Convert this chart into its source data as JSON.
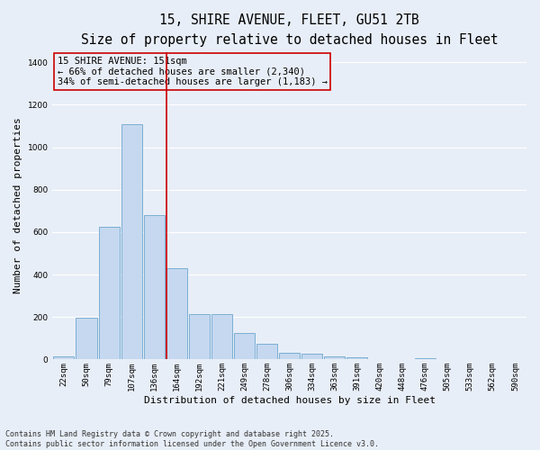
{
  "title_line1": "15, SHIRE AVENUE, FLEET, GU51 2TB",
  "title_line2": "Size of property relative to detached houses in Fleet",
  "xlabel": "Distribution of detached houses by size in Fleet",
  "ylabel": "Number of detached properties",
  "categories": [
    "22sqm",
    "50sqm",
    "79sqm",
    "107sqm",
    "136sqm",
    "164sqm",
    "192sqm",
    "221sqm",
    "249sqm",
    "278sqm",
    "306sqm",
    "334sqm",
    "363sqm",
    "391sqm",
    "420sqm",
    "448sqm",
    "476sqm",
    "505sqm",
    "533sqm",
    "562sqm",
    "590sqm"
  ],
  "values": [
    15,
    195,
    625,
    1110,
    680,
    430,
    215,
    215,
    125,
    75,
    30,
    28,
    15,
    10,
    0,
    0,
    8,
    0,
    0,
    0,
    0
  ],
  "bar_color": "#c5d8f0",
  "bar_edge_color": "#7bafd4",
  "background_color": "#e8eef7",
  "grid_color": "#ffffff",
  "vline_x": 4.55,
  "vline_color": "#cc0000",
  "annotation_line1": "15 SHIRE AVENUE: 151sqm",
  "annotation_line2": "← 66% of detached houses are smaller (2,340)",
  "annotation_line3": "34% of semi-detached houses are larger (1,183) →",
  "footer_text": "Contains HM Land Registry data © Crown copyright and database right 2025.\nContains public sector information licensed under the Open Government Licence v3.0.",
  "ylim": [
    0,
    1450
  ],
  "title_fontsize": 10.5,
  "subtitle_fontsize": 8.5,
  "axis_label_fontsize": 8,
  "tick_fontsize": 6.5,
  "annotation_fontsize": 7.5,
  "footer_fontsize": 6.0
}
